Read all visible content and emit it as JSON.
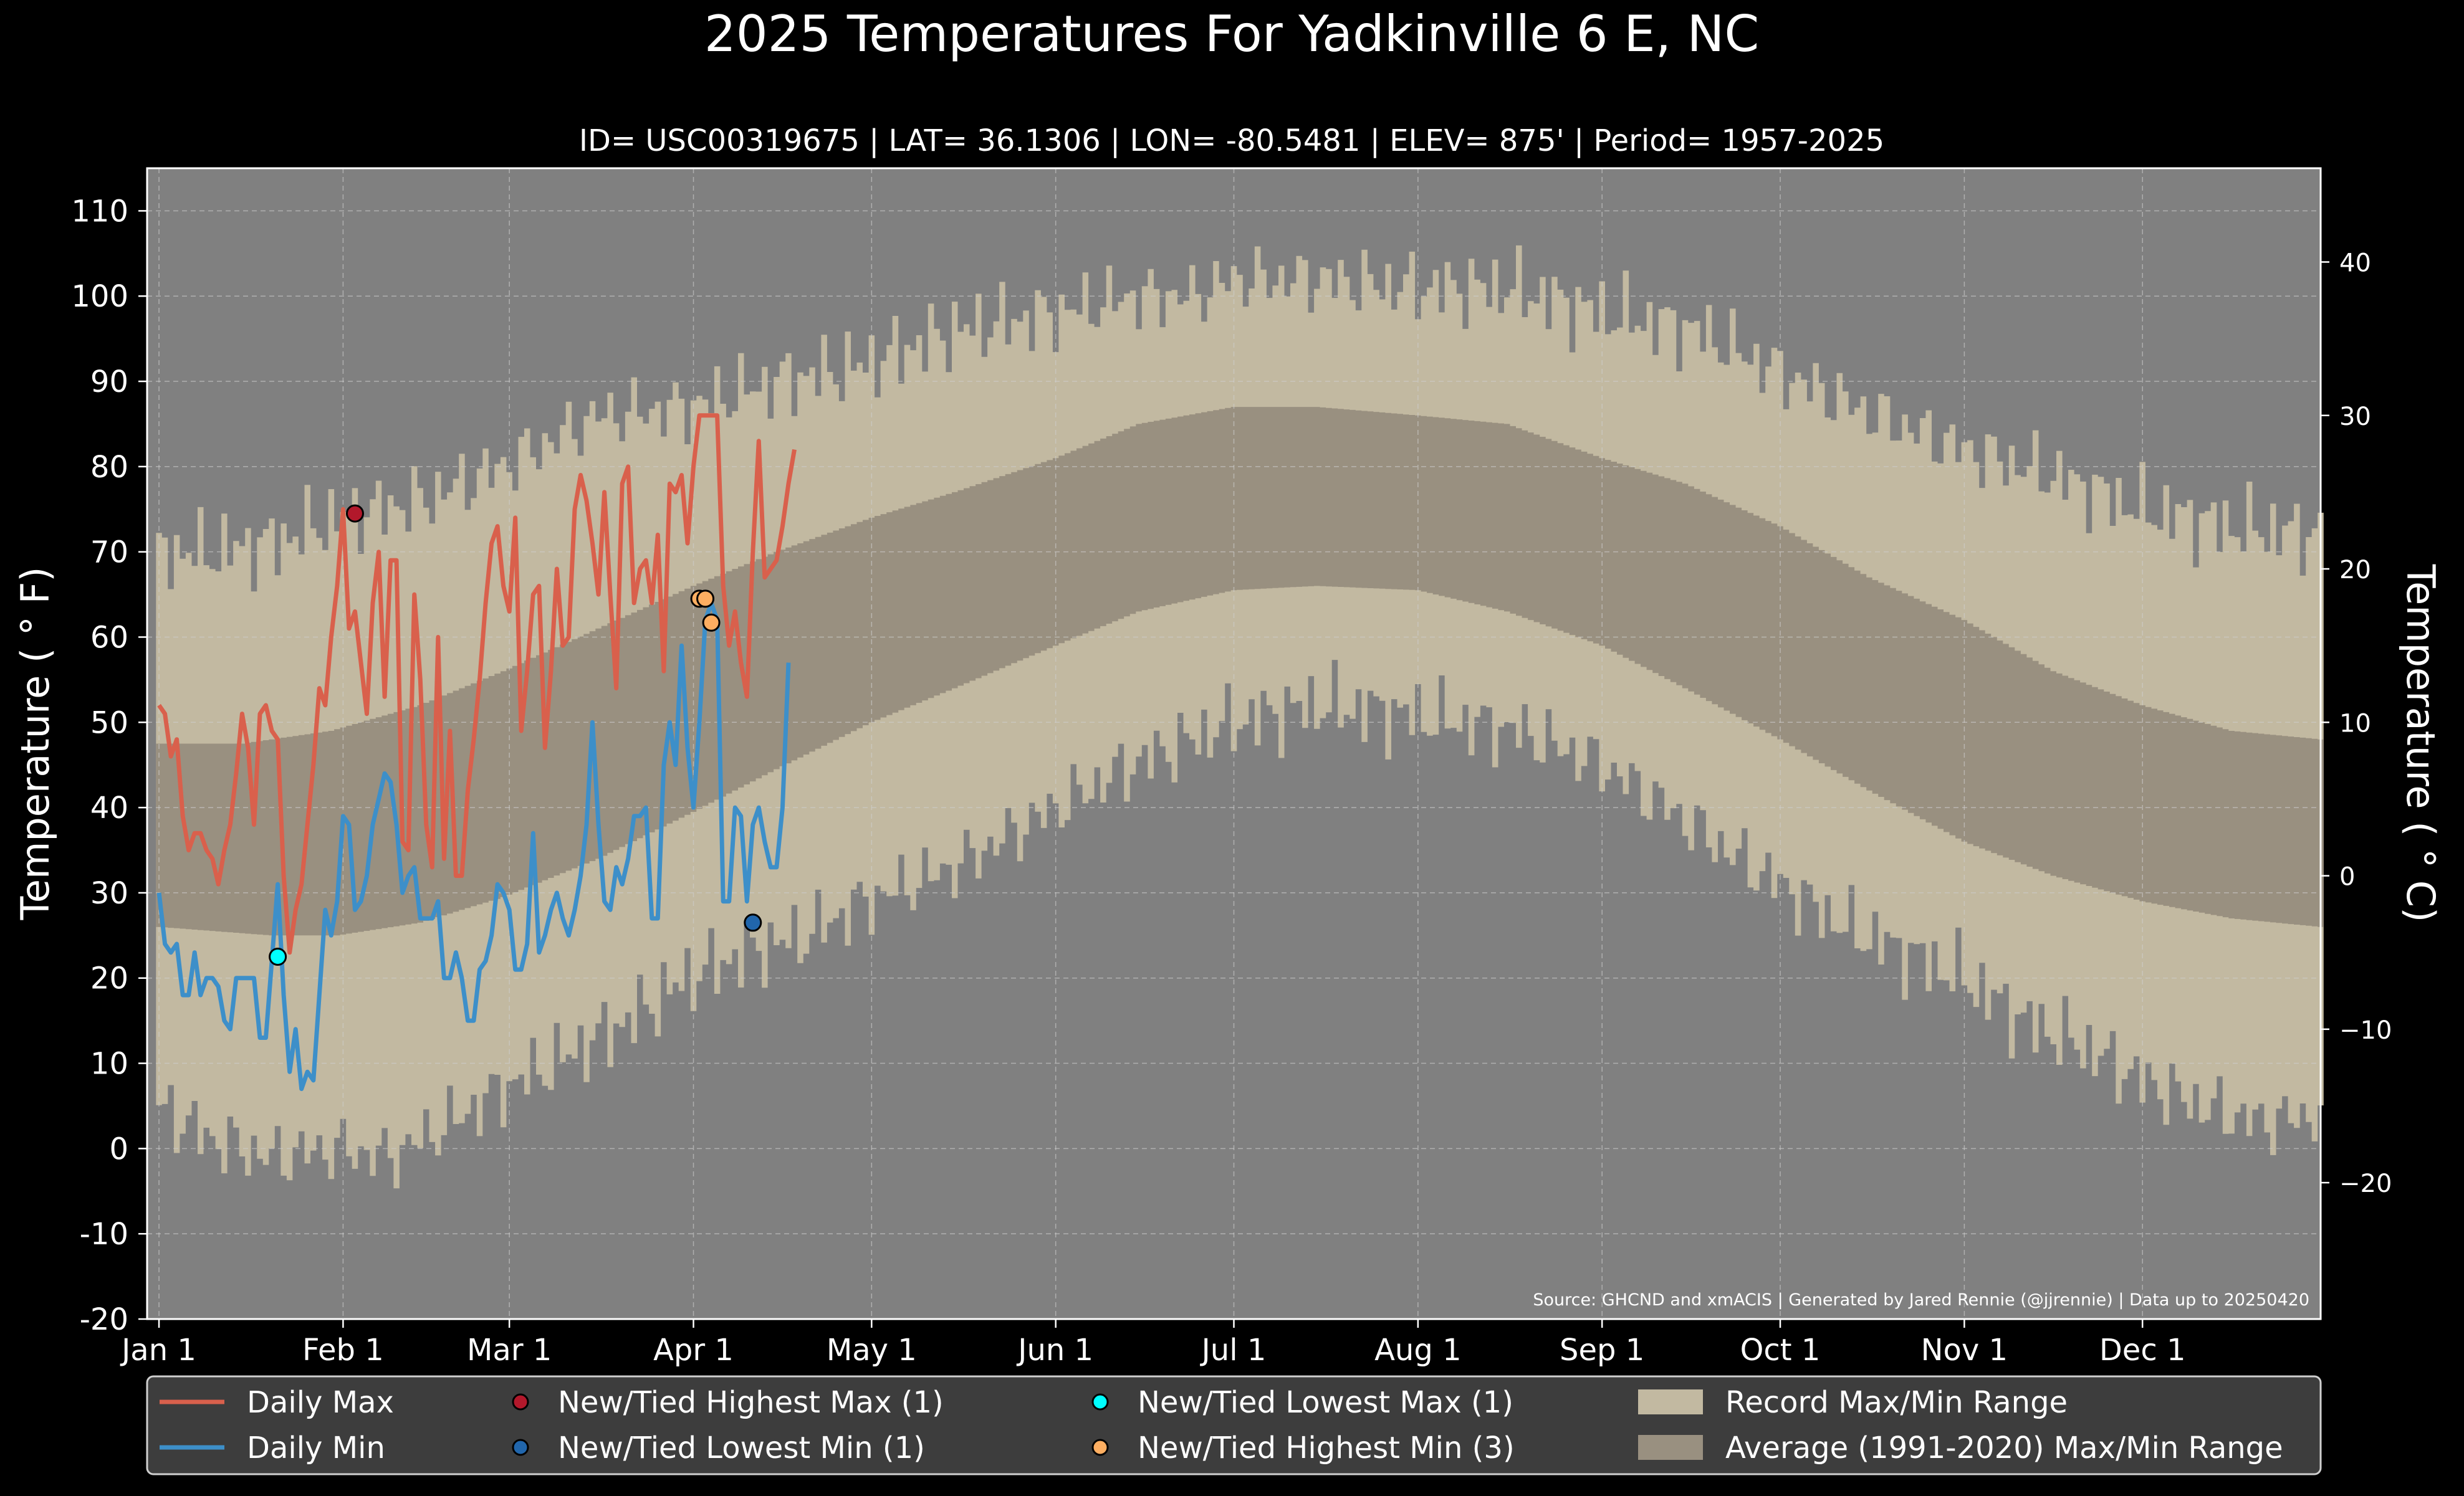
{
  "title": "2025 Temperatures For Yadkinville 6 E, NC",
  "subtitle": "ID= USC00319675 | LAT= 36.1306 | LON= -80.5481 | ELEV= 875' | Period= 1957-2025",
  "source": "Source: GHCND and xmACIS | Generated by Jared Rennie (@jjrennie) | Data up to 20250420",
  "colors": {
    "background": "#000000",
    "plot_background": "#808080",
    "record_range": "#c2b9a1",
    "normal_range": "#999080",
    "daily_max": "#d9604c",
    "daily_min": "#3d8fc9",
    "highest_max": "#b2182b",
    "lowest_min": "#2166ac",
    "lowest_max": "#00ffff",
    "highest_min": "#fdae61",
    "legend_bg": "#3d3d3d"
  },
  "legend": [
    {
      "label": "Daily Max",
      "kind": "line",
      "color": "#d9604c"
    },
    {
      "label": "Daily Min",
      "kind": "line",
      "color": "#3d8fc9"
    },
    {
      "label": "New/Tied Highest Max (1)",
      "kind": "dot",
      "color": "#b2182b"
    },
    {
      "label": "New/Tied Lowest Min (1)",
      "kind": "dot",
      "color": "#2166ac"
    },
    {
      "label": "New/Tied Lowest Max (1)",
      "kind": "dot",
      "color": "#00ffff"
    },
    {
      "label": "New/Tied Highest Min (3)",
      "kind": "dot",
      "color": "#fdae61"
    },
    {
      "label": "Record Max/Min Range",
      "kind": "patch",
      "color": "#c2b9a1"
    },
    {
      "label": "Average (1991-2020) Max/Min Range",
      "kind": "patch",
      "color": "#999080"
    }
  ],
  "chart_data": {
    "type": "line",
    "title": "2025 Temperatures For Yadkinville 6 E, NC",
    "ylabel": "Temperature ($^\\circ$F)",
    "y2label": "Temperature ($^\\circ$C)",
    "ylabel_display": "Temperature ( ° F)",
    "y2label_display": "Temperature ( ° C)",
    "ylim": [
      -20,
      115
    ],
    "y_ticks": [
      -20,
      -10,
      0,
      10,
      20,
      30,
      40,
      50,
      60,
      70,
      80,
      90,
      100,
      110
    ],
    "y2_ticks": [
      -20,
      -10,
      0,
      10,
      20,
      30,
      40
    ],
    "y2_tick_labels": [
      "−20",
      "−10",
      "0",
      "10",
      "20",
      "30",
      "40"
    ],
    "xlim_day_of_year": [
      -1,
      365
    ],
    "month_ticks": [
      {
        "label": "Jan 1",
        "day": 1
      },
      {
        "label": "Feb 1",
        "day": 32
      },
      {
        "label": "Mar 1",
        "day": 60
      },
      {
        "label": "Apr 1",
        "day": 91
      },
      {
        "label": "May 1",
        "day": 121
      },
      {
        "label": "Jun 1",
        "day": 152
      },
      {
        "label": "Jul 1",
        "day": 182
      },
      {
        "label": "Aug 1",
        "day": 213
      },
      {
        "label": "Sep 1",
        "day": 244
      },
      {
        "label": "Oct 1",
        "day": 274
      },
      {
        "label": "Nov 1",
        "day": 305
      },
      {
        "label": "Dec 1",
        "day": 335
      }
    ],
    "grid": true,
    "legend_position": "bottom",
    "record_high_anchors": [
      [
        1,
        70
      ],
      [
        10,
        70
      ],
      [
        20,
        71
      ],
      [
        31,
        74
      ],
      [
        45,
        76
      ],
      [
        59,
        80
      ],
      [
        75,
        86
      ],
      [
        90,
        87
      ],
      [
        105,
        90
      ],
      [
        120,
        92
      ],
      [
        135,
        96
      ],
      [
        152,
        98
      ],
      [
        165,
        100
      ],
      [
        175,
        100
      ],
      [
        182,
        102
      ],
      [
        196,
        102
      ],
      [
        213,
        101
      ],
      [
        228,
        101
      ],
      [
        244,
        98
      ],
      [
        260,
        96
      ],
      [
        274,
        91
      ],
      [
        290,
        86
      ],
      [
        305,
        82
      ],
      [
        320,
        79
      ],
      [
        335,
        75
      ],
      [
        350,
        73
      ],
      [
        365,
        72
      ]
    ],
    "record_low_anchors": [
      [
        1,
        5
      ],
      [
        10,
        1
      ],
      [
        20,
        -1
      ],
      [
        31,
        0
      ],
      [
        40,
        -1
      ],
      [
        50,
        3
      ],
      [
        59,
        7
      ],
      [
        70,
        11
      ],
      [
        80,
        15
      ],
      [
        90,
        20
      ],
      [
        100,
        23
      ],
      [
        110,
        25
      ],
      [
        120,
        29
      ],
      [
        135,
        33
      ],
      [
        152,
        40
      ],
      [
        165,
        45
      ],
      [
        175,
        48
      ],
      [
        182,
        50
      ],
      [
        196,
        52
      ],
      [
        210,
        51
      ],
      [
        220,
        50
      ],
      [
        230,
        49
      ],
      [
        244,
        45
      ],
      [
        255,
        40
      ],
      [
        265,
        35
      ],
      [
        274,
        31
      ],
      [
        285,
        26
      ],
      [
        295,
        23
      ],
      [
        305,
        20
      ],
      [
        315,
        15
      ],
      [
        325,
        12
      ],
      [
        335,
        8
      ],
      [
        345,
        5
      ],
      [
        355,
        3
      ],
      [
        365,
        4
      ]
    ],
    "normal_high_anchors": [
      [
        1,
        47.5
      ],
      [
        15,
        47.5
      ],
      [
        30,
        49
      ],
      [
        45,
        52
      ],
      [
        59,
        56
      ],
      [
        75,
        61
      ],
      [
        91,
        66
      ],
      [
        105,
        70
      ],
      [
        121,
        74
      ],
      [
        135,
        77
      ],
      [
        152,
        81
      ],
      [
        166,
        85
      ],
      [
        182,
        87
      ],
      [
        196,
        87
      ],
      [
        213,
        86
      ],
      [
        228,
        85
      ],
      [
        244,
        81
      ],
      [
        258,
        78
      ],
      [
        274,
        73
      ],
      [
        289,
        67
      ],
      [
        305,
        62
      ],
      [
        320,
        56
      ],
      [
        335,
        52
      ],
      [
        350,
        49
      ],
      [
        365,
        48
      ]
    ],
    "normal_low_anchors": [
      [
        1,
        26
      ],
      [
        20,
        25
      ],
      [
        31,
        25
      ],
      [
        45,
        26.5
      ],
      [
        59,
        29.5
      ],
      [
        75,
        34
      ],
      [
        91,
        39.5
      ],
      [
        105,
        44.5
      ],
      [
        121,
        50
      ],
      [
        135,
        54
      ],
      [
        152,
        59
      ],
      [
        166,
        63
      ],
      [
        182,
        65.5
      ],
      [
        196,
        66
      ],
      [
        213,
        65.5
      ],
      [
        228,
        63
      ],
      [
        244,
        59
      ],
      [
        258,
        54
      ],
      [
        274,
        48
      ],
      [
        289,
        42
      ],
      [
        305,
        36
      ],
      [
        320,
        32
      ],
      [
        335,
        29
      ],
      [
        350,
        27
      ],
      [
        365,
        26
      ]
    ],
    "series": [
      {
        "name": "Daily Max",
        "start_day": 1,
        "values": [
          52,
          51,
          46,
          48,
          39,
          35,
          37,
          37,
          35,
          34,
          31,
          35,
          38,
          44,
          51,
          47,
          38,
          51,
          52,
          49,
          48,
          32,
          23,
          28,
          31,
          38,
          45,
          54,
          52,
          60,
          66,
          75,
          61,
          63,
          57,
          51,
          64,
          70,
          53,
          69,
          69,
          36,
          35,
          65,
          55,
          38,
          33,
          60,
          34,
          49,
          32,
          32,
          42,
          48,
          55,
          64,
          71,
          73,
          66,
          63,
          74,
          49,
          56,
          65,
          66,
          47,
          56,
          68,
          59,
          60,
          75,
          79,
          76,
          71,
          65,
          77,
          65,
          54,
          78,
          80,
          64,
          68,
          69,
          64,
          72,
          56,
          78,
          77,
          79,
          71,
          80,
          86,
          86,
          86,
          86,
          66,
          59,
          63,
          57,
          53,
          70,
          83,
          67,
          68,
          69,
          73,
          78,
          82
        ]
      },
      {
        "name": "Daily Min",
        "start_day": 1,
        "values": [
          30,
          24,
          23,
          24,
          18,
          18,
          23,
          18,
          20,
          20,
          19,
          15,
          14,
          20,
          20,
          20,
          20,
          13,
          13,
          22,
          31,
          18,
          9,
          14,
          7,
          9,
          8,
          18,
          28,
          25,
          29,
          39,
          38,
          28,
          29,
          32,
          38,
          41,
          44,
          43,
          38,
          30,
          32,
          33,
          27,
          27,
          27,
          29,
          20,
          20,
          23,
          20,
          15,
          15,
          21,
          22,
          25,
          31,
          30,
          28,
          21,
          21,
          24,
          37,
          23,
          25,
          28,
          30,
          27,
          25,
          28,
          32,
          38,
          50,
          38,
          29,
          28,
          33,
          31,
          34,
          39,
          39,
          40,
          27,
          27,
          45,
          50,
          45,
          59,
          47,
          40,
          50,
          62,
          64,
          62,
          29,
          29,
          40,
          39,
          29,
          38,
          40,
          36,
          33,
          33,
          40,
          57
        ]
      }
    ],
    "record_points": [
      {
        "name": "New/Tied Highest Max (1)",
        "points": [
          {
            "day": 34,
            "value": 74.5
          }
        ]
      },
      {
        "name": "New/Tied Lowest Max (1)",
        "points": [
          {
            "day": 21,
            "value": 22.5
          }
        ]
      },
      {
        "name": "New/Tied Highest Min (3)",
        "points": [
          {
            "day": 92,
            "value": 64.5
          },
          {
            "day": 93,
            "value": 64.5
          },
          {
            "day": 94,
            "value": 61.7
          }
        ]
      },
      {
        "name": "New/Tied Lowest Min (1)",
        "points": [
          {
            "day": 101,
            "value": 26.5
          }
        ]
      }
    ]
  }
}
